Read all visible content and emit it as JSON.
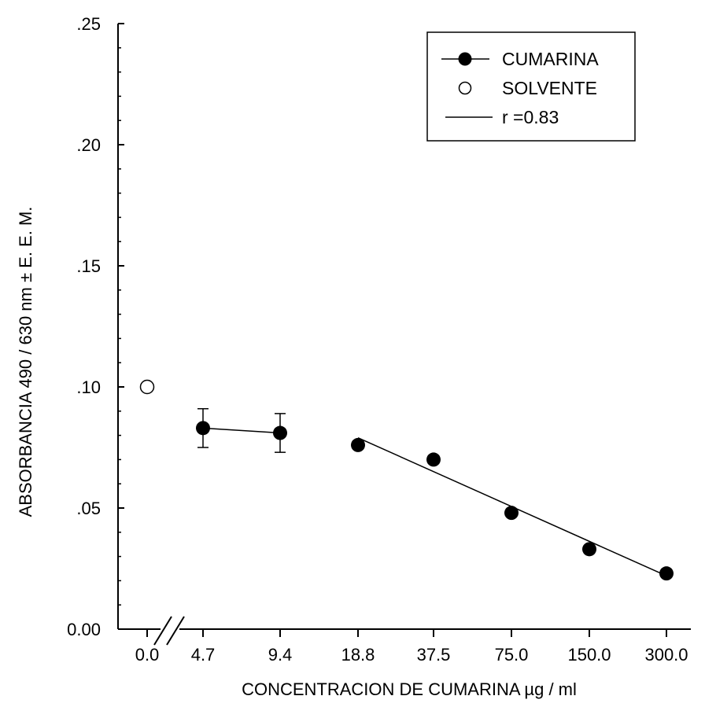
{
  "chart_data": {
    "type": "scatter",
    "xlabel": "CONCENTRACION  DE  CUMARINA  µg / ml",
    "ylabel": "ABSORBANCIA  490 / 630 nm ± E. E. M.",
    "x_categories": [
      "0.0",
      "4.7",
      "9.4",
      "18.8",
      "37.5",
      "75.0",
      "150.0",
      "300.0"
    ],
    "y_ticks": [
      ".25",
      ".20",
      ".15",
      ".10",
      ".05",
      "0.00"
    ],
    "ylim": [
      0,
      0.25
    ],
    "axis_break": "between 0.0 and 4.7",
    "legend_position": "top-right",
    "series": [
      {
        "name": "SOLVENTE",
        "marker": "open-circle",
        "points": [
          {
            "x": "0.0",
            "y": 0.1
          }
        ]
      },
      {
        "name": "CUMARINA",
        "marker": "filled-circle",
        "connected": "4.7-9.4",
        "points": [
          {
            "x": "4.7",
            "y": 0.083,
            "err": 0.008
          },
          {
            "x": "9.4",
            "y": 0.081,
            "err": 0.008
          },
          {
            "x": "18.8",
            "y": 0.076
          },
          {
            "x": "37.5",
            "y": 0.07
          },
          {
            "x": "75.0",
            "y": 0.048
          },
          {
            "x": "150.0",
            "y": 0.033
          },
          {
            "x": "300.0",
            "y": 0.023
          }
        ]
      }
    ],
    "regression": {
      "name": "r =0.83",
      "from": {
        "x": "18.8",
        "y": 0.079
      },
      "to": {
        "x": "300.0",
        "y": 0.022
      }
    },
    "legend": [
      {
        "label": "CUMARINA",
        "symbol": "filled-circle-line"
      },
      {
        "label": "SOLVENTE",
        "symbol": "open-circle"
      },
      {
        "label": "r =0.83",
        "symbol": "line"
      }
    ]
  },
  "colors": {
    "ink": "#000000",
    "background": "#ffffff"
  }
}
